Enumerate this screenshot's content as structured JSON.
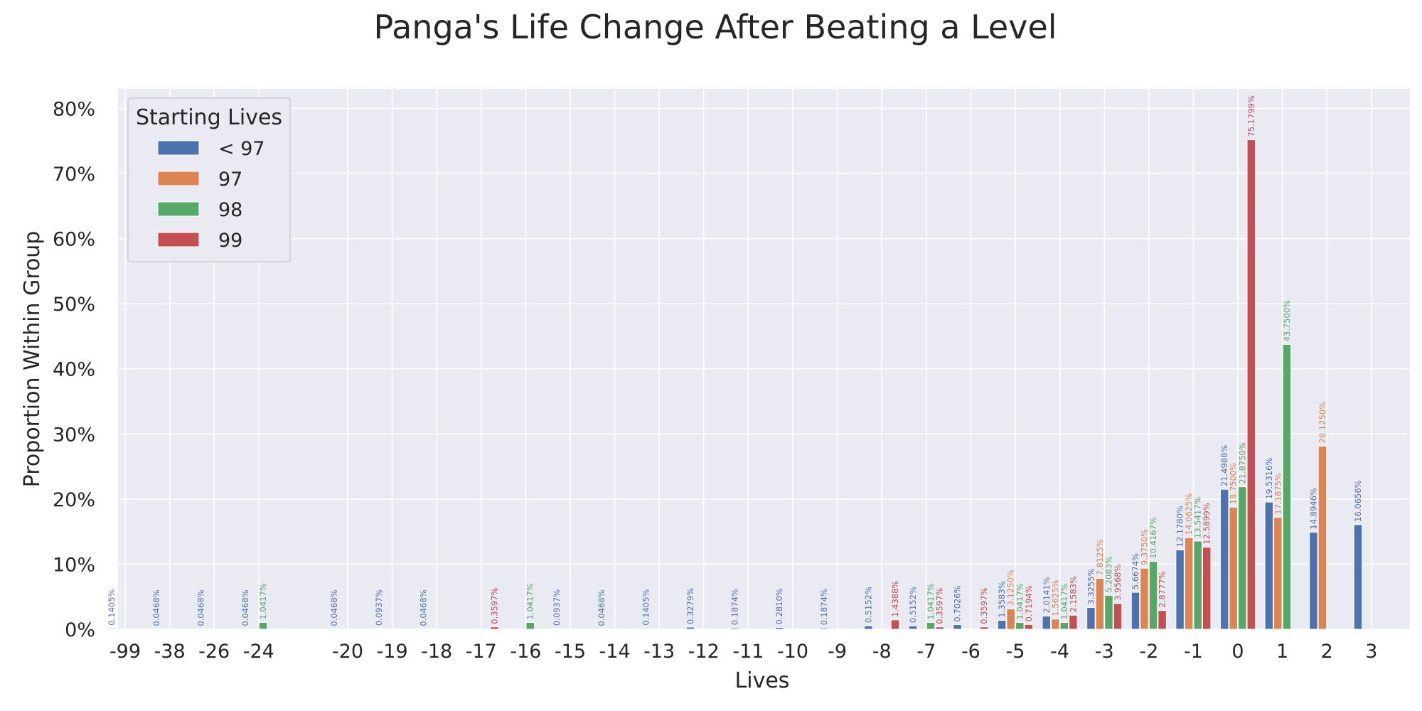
{
  "chart_data": {
    "type": "bar",
    "title": "Panga's Life Change After Beating a Level",
    "xlabel": "Lives",
    "ylabel": "Proportion Within Group",
    "ylim": [
      0,
      83
    ],
    "y_ticks": [
      "0%",
      "10%",
      "20%",
      "30%",
      "40%",
      "50%",
      "60%",
      "70%",
      "80%"
    ],
    "grid": true,
    "legend_title": "Starting Lives",
    "legend_position": "upper-left",
    "categories": [
      "-99",
      "-38",
      "-26",
      "-24",
      "-20",
      "-19",
      "-18",
      "-17",
      "-16",
      "-15",
      "-14",
      "-13",
      "-12",
      "-11",
      "-10",
      "-9",
      "-8",
      "-7",
      "-6",
      "-5",
      "-4",
      "-3",
      "-2",
      "-1",
      "0",
      "1",
      "2",
      "3"
    ],
    "series": [
      {
        "name": "< 97",
        "color": "#4c72b0",
        "values": [
          0.1405,
          0.0468,
          0.0468,
          0.0468,
          0.0468,
          0.0937,
          0.0468,
          null,
          null,
          0.0937,
          0.0468,
          0.1405,
          0.3279,
          0.1874,
          0.281,
          0.1874,
          0.5152,
          0.5152,
          0.7026,
          1.3583,
          2.0141,
          3.3255,
          5.6674,
          12.178,
          21.4988,
          19.5316,
          14.8946,
          16.0656
        ],
        "labels": [
          "0.1405%",
          "0.0468%",
          "0.0468%",
          "0.0468%",
          "0.0468%",
          "0.0937%",
          "0.0468%",
          null,
          null,
          "0.0937%",
          "0.0468%",
          "0.1405%",
          "0.3279%",
          "0.1874%",
          "0.2810%",
          "0.1874%",
          "0.5152%",
          "0.5152%",
          "0.7026%",
          "1.3583%",
          "2.0141%",
          "3.3255%",
          "5.6674%",
          "12.1780%",
          "21.4988%",
          "19.5316%",
          "14.8946%",
          "16.0656%"
        ]
      },
      {
        "name": "97",
        "color": "#dd8452",
        "values": [
          null,
          null,
          null,
          null,
          null,
          null,
          null,
          null,
          null,
          null,
          null,
          null,
          null,
          null,
          null,
          null,
          null,
          null,
          null,
          3.125,
          1.5625,
          7.8125,
          9.375,
          14.0625,
          18.75,
          17.1875,
          28.125,
          null
        ],
        "labels": [
          null,
          null,
          null,
          null,
          null,
          null,
          null,
          null,
          null,
          null,
          null,
          null,
          null,
          null,
          null,
          null,
          null,
          null,
          null,
          "3.1250%",
          "1.5625%",
          "7.8125%",
          "9.3750%",
          "14.0625%",
          "18.7500%",
          "17.1875%",
          "28.1250%",
          null
        ]
      },
      {
        "name": "98",
        "color": "#55a868",
        "values": [
          null,
          null,
          null,
          1.0417,
          null,
          null,
          null,
          null,
          1.0417,
          null,
          null,
          null,
          null,
          null,
          null,
          null,
          null,
          1.0417,
          null,
          1.0417,
          1.0417,
          5.2083,
          10.4167,
          13.5417,
          21.875,
          43.75,
          null,
          null
        ],
        "labels": [
          null,
          null,
          null,
          "1.0417%",
          null,
          null,
          null,
          null,
          "1.0417%",
          null,
          null,
          null,
          null,
          null,
          null,
          null,
          null,
          "1.0417%",
          null,
          "1.0417%",
          "1.0417%",
          "5.2083%",
          "10.4167%",
          "13.5417%",
          "21.8750%",
          "43.7500%",
          null,
          null
        ]
      },
      {
        "name": "99",
        "color": "#c44e52",
        "values": [
          null,
          null,
          null,
          null,
          null,
          null,
          null,
          0.3597,
          null,
          null,
          null,
          null,
          null,
          null,
          null,
          null,
          1.4388,
          0.3597,
          0.3597,
          0.7194,
          2.1583,
          3.9568,
          2.8777,
          12.5899,
          75.1799,
          null,
          null,
          null
        ],
        "labels": [
          null,
          null,
          null,
          null,
          null,
          null,
          null,
          "0.3597%",
          null,
          null,
          null,
          null,
          null,
          null,
          null,
          null,
          "1.4388%",
          "0.3597%",
          "0.3597%",
          "0.7194%",
          "2.1583%",
          "3.9568%",
          "2.8777%",
          "12.5899%",
          "75.1799%",
          null,
          null,
          null
        ]
      }
    ]
  }
}
